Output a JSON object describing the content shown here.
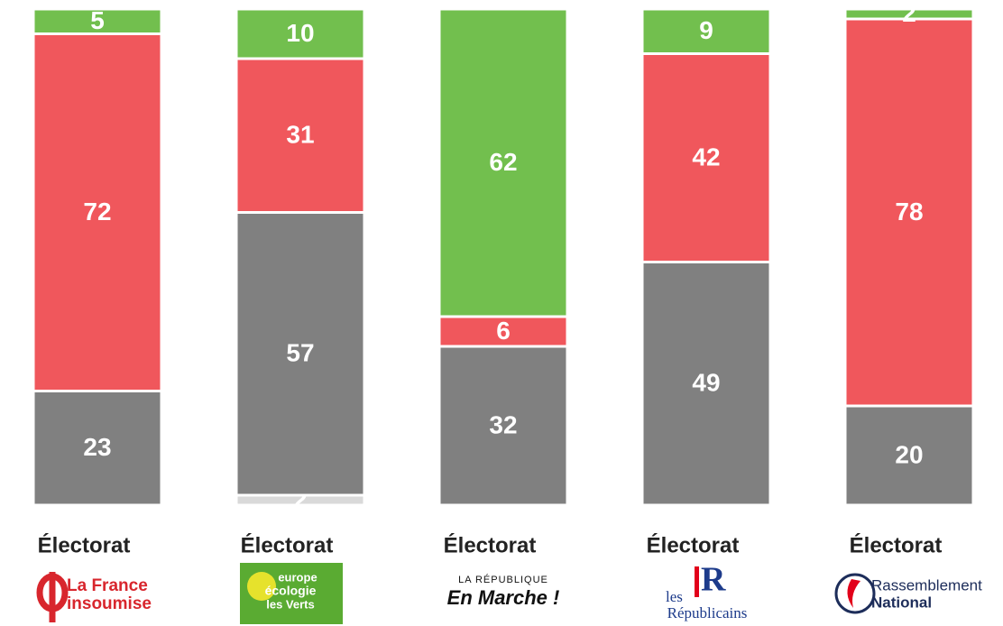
{
  "chart_data": {
    "type": "bar",
    "stacked": true,
    "categories": [
      "Électorat",
      "Électorat",
      "Électorat",
      "Électorat",
      "Électorat"
    ],
    "series": [
      {
        "color": "#d9d9d9",
        "values": [
          null,
          2,
          null,
          null,
          null
        ]
      },
      {
        "color": "#808080",
        "values": [
          23,
          57,
          32,
          49,
          20
        ]
      },
      {
        "color": "#f0575c",
        "values": [
          72,
          31,
          6,
          42,
          78
        ]
      },
      {
        "color": "#72bf4e",
        "values": [
          5,
          10,
          62,
          9,
          2
        ]
      }
    ],
    "ylim": [
      0,
      100
    ],
    "logos": [
      [
        "La France",
        "insoumise"
      ],
      [
        "europe",
        "écologie",
        "les Verts"
      ],
      [
        "LA RÉPUBLIQUE",
        "En Marche !"
      ],
      [
        "les",
        "R",
        "Républicains"
      ],
      [
        "Rassemblement",
        "National"
      ]
    ]
  }
}
